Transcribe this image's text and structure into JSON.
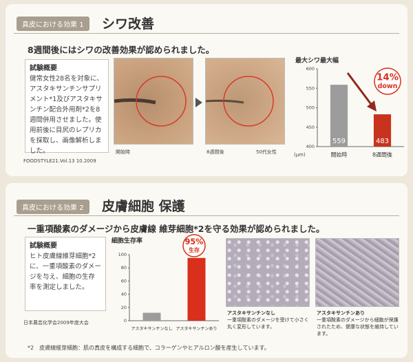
{
  "section1": {
    "tag": "真皮における効果",
    "number": "1",
    "title": "シワ改善",
    "headline": "8週間後にはシワの改善効果が認められました。",
    "summary": {
      "title": "試験概要",
      "text": "健常女性28名を対象に、アスタキサンチンサプリメント*1及びアスタキサンチン配合外用剤*2を8週間併用させました。使用前後に目尻のレプリカを採取し、画像解析しました。"
    },
    "source": "FOODSTYLE21.Vol.13 10.2009",
    "photo_captions": [
      "開始時",
      "8週間後",
      "50代女性"
    ]
  },
  "section2": {
    "tag": "真皮における効果",
    "number": "2",
    "title": "皮膚細胞 保護",
    "headline": "一重項酸素のダメージから皮膚線 維芽細胞*2を守る効果が認められました。",
    "summary": {
      "title": "試験概要",
      "text": "ヒト皮膚線維芽細胞*2に、一重項酸素のダメージを与え、細胞の生存率を測定しました。"
    },
    "source": "日本農芸化学会2009年度大会",
    "photo_captions": [
      {
        "title": "アスタキサンチンなし",
        "text": "一重項酸素のダメージを受けて小さく丸く変形しています。"
      },
      {
        "title": "アスタキサンチンあり",
        "text": "一重項酸素のダメージから細胞が保護されたため、健康な状態を維持しています。"
      }
    ],
    "footnote": "*2　皮膚線維芽細胞：肌の真皮を構成する細胞で、コラーゲンやヒアルロン酸を産生しています。"
  },
  "chart_data": [
    {
      "type": "bar",
      "title": "最大シワ最大幅",
      "y_unit": "(μm)",
      "categories": [
        "開始時",
        "8週間後"
      ],
      "values": [
        559,
        483
      ],
      "colors": [
        "#9c9c9c",
        "#c8321e"
      ],
      "show_values": true,
      "ylim": [
        400,
        600
      ],
      "yticks": [
        400,
        450,
        500,
        550,
        600
      ],
      "badge": [
        "14%",
        "down"
      ]
    },
    {
      "type": "bar",
      "title": "細胞生存率",
      "categories": [
        "アスタキサンチンなし",
        "アスタキサンチンあり"
      ],
      "values": [
        12,
        95
      ],
      "colors": [
        "#9c9c9c",
        "#d8301c"
      ],
      "show_values": false,
      "ylim": [
        0,
        100
      ],
      "yticks": [
        0,
        20,
        40,
        60,
        80,
        100
      ],
      "badge": [
        "95%",
        "生存"
      ]
    }
  ]
}
